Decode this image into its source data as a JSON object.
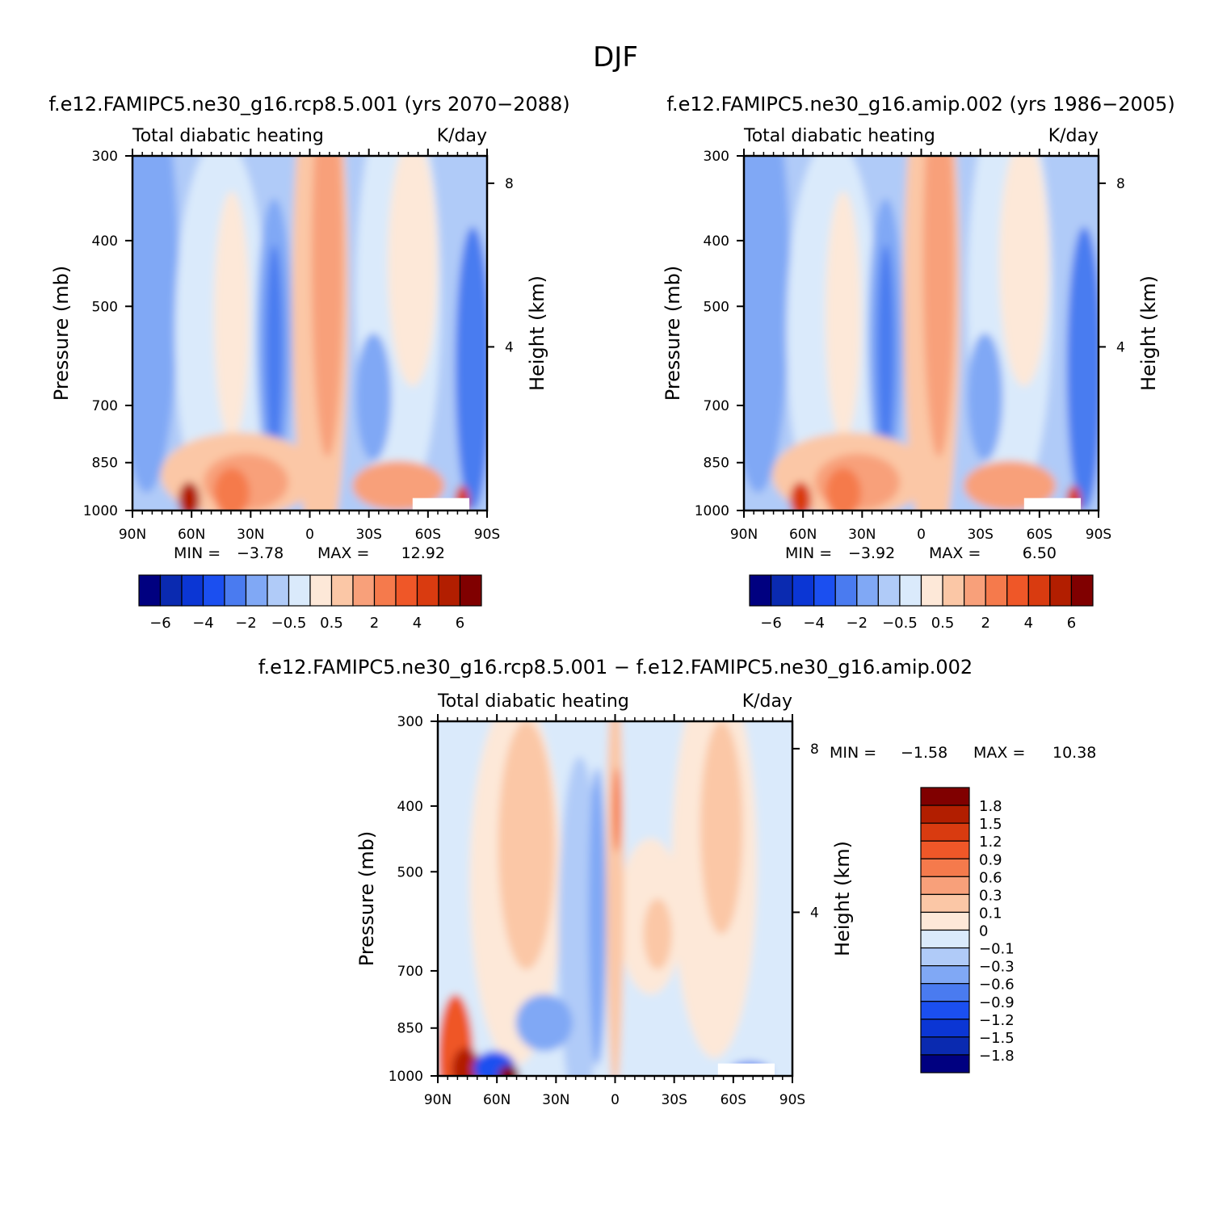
{
  "title": "DJF",
  "colors": {
    "abs_levels": [
      "#000080",
      "#0a2ab0",
      "#0b36d4",
      "#1b4ff0",
      "#4a7bf0",
      "#80a8f5",
      "#b0cbf8",
      "#daeafb",
      "#fde8d8",
      "#fbc7a6",
      "#f8a07a",
      "#f57a4c",
      "#ef5728",
      "#d93b10",
      "#b21e00",
      "#800000"
    ],
    "diff_levels": [
      "#000080",
      "#0a2ab0",
      "#0b36d4",
      "#1b4ff0",
      "#4a7bf0",
      "#80a8f5",
      "#b0cbf8",
      "#daeafb",
      "#fde8d8",
      "#fbc7a6",
      "#f8a07a",
      "#f57a4c",
      "#ef5728",
      "#d93b10",
      "#b21e00",
      "#800000"
    ]
  },
  "chart_data": [
    {
      "id": "rcp85",
      "type": "heatmap",
      "title": "f.e12.FAMIPC5.ne30_g16.rcp8.5.001 (yrs 2070-2088)",
      "left_label": "Total diabatic heating",
      "right_label": "K/day",
      "ylabel": "Pressure (mb)",
      "y2label": "Height (km)",
      "xticks": [
        "90N",
        "60N",
        "30N",
        "0",
        "30S",
        "60S",
        "90S"
      ],
      "yticks": [
        "300",
        "400",
        "500",
        "700",
        "850",
        "1000"
      ],
      "y2ticks": [
        "8",
        "4"
      ],
      "stats": {
        "min_label": "MIN =",
        "min": "-3.78",
        "max_label": "MAX =",
        "max": "12.92"
      },
      "colorbar_labels": [
        "-6",
        "-4",
        "-2",
        "-0.5",
        "0.5",
        "2",
        "4",
        "6"
      ],
      "levels": [
        -6,
        -5,
        -4,
        -3,
        -2,
        -1,
        -0.5,
        0,
        0.5,
        1,
        2,
        3,
        4,
        5,
        6
      ],
      "ylim": [
        1000,
        300
      ]
    },
    {
      "id": "amip",
      "type": "heatmap",
      "title": "f.e12.FAMIPC5.ne30_g16.amip.002 (yrs 1986-2005)",
      "left_label": "Total diabatic heating",
      "right_label": "K/day",
      "ylabel": "Pressure (mb)",
      "y2label": "Height (km)",
      "xticks": [
        "90N",
        "60N",
        "30N",
        "0",
        "30S",
        "60S",
        "90S"
      ],
      "yticks": [
        "300",
        "400",
        "500",
        "700",
        "850",
        "1000"
      ],
      "y2ticks": [
        "8",
        "4"
      ],
      "stats": {
        "min_label": "MIN =",
        "min": "-3.92",
        "max_label": "MAX =",
        "max": "6.50"
      },
      "colorbar_labels": [
        "-6",
        "-4",
        "-2",
        "-0.5",
        "0.5",
        "2",
        "4",
        "6"
      ],
      "levels": [
        -6,
        -5,
        -4,
        -3,
        -2,
        -1,
        -0.5,
        0,
        0.5,
        1,
        2,
        3,
        4,
        5,
        6
      ],
      "ylim": [
        1000,
        300
      ]
    },
    {
      "id": "diff",
      "type": "heatmap",
      "title": "f.e12.FAMIPC5.ne30_g16.rcp8.5.001 - f.e12.FAMIPC5.ne30_g16.amip.002",
      "left_label": "Total diabatic heating",
      "right_label": "K/day",
      "ylabel": "Pressure (mb)",
      "y2label": "Height (km)",
      "xticks": [
        "90N",
        "60N",
        "30N",
        "0",
        "30S",
        "60S",
        "90S"
      ],
      "yticks": [
        "300",
        "400",
        "500",
        "700",
        "850",
        "1000"
      ],
      "y2ticks": [
        "8",
        "4"
      ],
      "stats": {
        "min_label": "MIN =",
        "min": "-1.58",
        "max_label": "MAX =",
        "max": "10.38"
      },
      "colorbar_labels": [
        "1.8",
        "1.5",
        "1.2",
        "0.9",
        "0.6",
        "0.3",
        "0.1",
        "0",
        "-0.1",
        "-0.3",
        "-0.6",
        "-0.9",
        "-1.2",
        "-1.5",
        "-1.8"
      ],
      "levels": [
        -1.8,
        -1.5,
        -1.2,
        -0.9,
        -0.6,
        -0.3,
        -0.1,
        0,
        0.1,
        0.3,
        0.6,
        0.9,
        1.2,
        1.5,
        1.8
      ],
      "ylim": [
        1000,
        300
      ]
    }
  ]
}
